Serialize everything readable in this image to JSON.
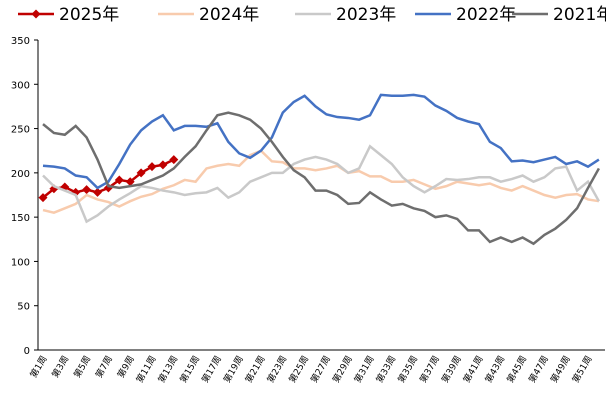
{
  "chart_data": {
    "type": "line",
    "categories": [
      "第1周",
      null,
      "第3周",
      null,
      "第5周",
      null,
      "第7周",
      null,
      "第9周",
      null,
      "第11周",
      null,
      "第13周",
      null,
      "第15周",
      null,
      "第17周",
      null,
      "第19周",
      null,
      "第21周",
      null,
      "第23周",
      null,
      "第25周",
      null,
      "第27周",
      null,
      "第29周",
      null,
      "第31周",
      null,
      "第33周",
      null,
      "第35周",
      null,
      "第37周",
      null,
      "第39周",
      null,
      "第41周",
      null,
      "第43周",
      null,
      "第45周",
      null,
      "第47周",
      null,
      "第49周",
      null,
      "第51周",
      null
    ],
    "ylim": [
      0,
      350
    ],
    "yticks": [
      0,
      50,
      100,
      150,
      200,
      250,
      300,
      350
    ],
    "series": [
      {
        "name": "2025年",
        "color": "#c00000",
        "markers": true,
        "values": [
          172,
          182,
          184,
          178,
          181,
          178,
          183,
          192,
          190,
          200,
          207,
          209,
          215,
          null,
          null,
          null,
          null,
          null,
          null,
          null,
          null,
          null,
          null,
          null,
          null,
          null,
          null,
          null,
          null,
          null,
          null,
          null,
          null,
          null,
          null,
          null,
          null,
          null,
          null,
          null,
          null,
          null,
          null,
          null,
          null,
          null,
          null,
          null,
          null,
          null,
          null,
          null
        ]
      },
      {
        "name": "2024年",
        "color": "#f8cbad",
        "values": [
          158,
          155,
          160,
          165,
          175,
          170,
          167,
          162,
          168,
          173,
          176,
          182,
          186,
          192,
          190,
          205,
          208,
          210,
          208,
          220,
          225,
          213,
          212,
          205,
          205,
          203,
          205,
          208,
          200,
          202,
          196,
          196,
          190,
          190,
          192,
          187,
          182,
          185,
          190,
          188,
          186,
          188,
          183,
          180,
          185,
          180,
          175,
          172,
          175,
          176,
          170,
          168
        ]
      },
      {
        "name": "2023年",
        "color": "#c9c9c9",
        "values": [
          197,
          185,
          180,
          175,
          145,
          152,
          162,
          170,
          177,
          185,
          183,
          180,
          178,
          175,
          177,
          178,
          183,
          172,
          178,
          190,
          195,
          200,
          200,
          210,
          215,
          218,
          215,
          210,
          200,
          205,
          230,
          220,
          210,
          195,
          185,
          178,
          185,
          193,
          192,
          193,
          195,
          195,
          190,
          193,
          197,
          190,
          195,
          205,
          207,
          180,
          190,
          168
        ]
      },
      {
        "name": "2022年",
        "color": "#4472c4",
        "values": [
          208,
          207,
          205,
          197,
          195,
          183,
          190,
          210,
          232,
          248,
          258,
          265,
          248,
          253,
          253,
          252,
          256,
          235,
          222,
          217,
          225,
          240,
          268,
          280,
          287,
          275,
          266,
          263,
          262,
          260,
          265,
          288,
          287,
          287,
          288,
          286,
          276,
          270,
          262,
          258,
          255,
          235,
          228,
          213,
          214,
          212,
          215,
          218,
          210,
          213,
          207,
          215
        ]
      },
      {
        "name": "2021年",
        "color": "#6e6e6e",
        "values": [
          255,
          245,
          243,
          253,
          240,
          215,
          185,
          183,
          185,
          187,
          192,
          197,
          205,
          218,
          230,
          248,
          265,
          268,
          265,
          260,
          250,
          235,
          218,
          203,
          195,
          180,
          180,
          175,
          165,
          166,
          178,
          170,
          163,
          165,
          160,
          157,
          150,
          152,
          148,
          135,
          135,
          122,
          127,
          122,
          127,
          120,
          130,
          137,
          147,
          160,
          183,
          205
        ]
      }
    ]
  }
}
